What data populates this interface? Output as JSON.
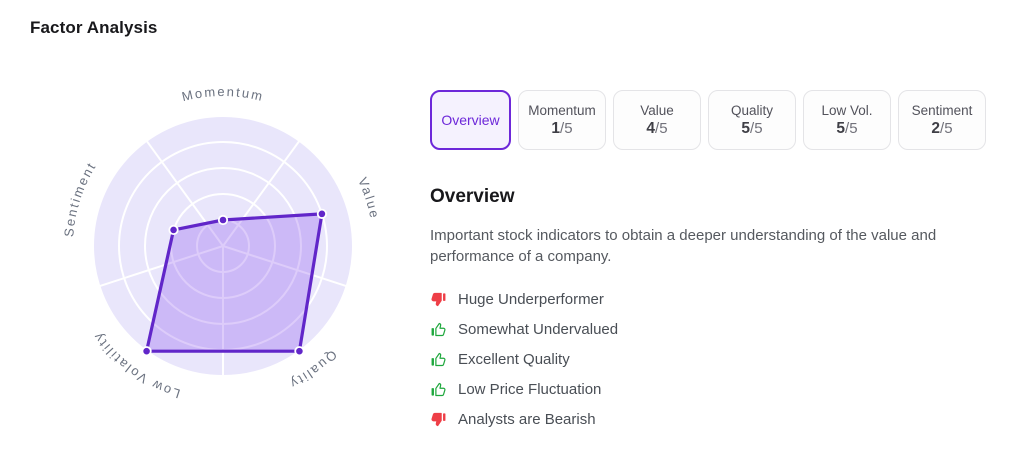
{
  "page": {
    "title": "Factor Analysis"
  },
  "tabs": [
    {
      "label": "Overview",
      "active": true
    },
    {
      "label": "Momentum",
      "score": "1",
      "total": "/5"
    },
    {
      "label": "Value",
      "score": "4",
      "total": "/5"
    },
    {
      "label": "Quality",
      "score": "5",
      "total": "/5"
    },
    {
      "label": "Low Vol.",
      "score": "5",
      "total": "/5"
    },
    {
      "label": "Sentiment",
      "score": "2",
      "total": "/5"
    }
  ],
  "overview": {
    "heading": "Overview",
    "description": "Important stock indicators to obtain a deeper understanding of the value and performance of a company.",
    "insights": [
      {
        "sentiment": "negative",
        "icon": "thumbs-down",
        "text": "Huge Underperformer"
      },
      {
        "sentiment": "positive",
        "icon": "thumbs-up",
        "text": "Somewhat Undervalued"
      },
      {
        "sentiment": "positive",
        "icon": "thumbs-up",
        "text": "Excellent Quality"
      },
      {
        "sentiment": "positive",
        "icon": "thumbs-up",
        "text": "Low Price Fluctuation"
      },
      {
        "sentiment": "negative",
        "icon": "thumbs-down",
        "text": "Analysts are Bearish"
      }
    ],
    "positive_color": "#1fa83d",
    "negative_color": "#ee3f47"
  },
  "chart_data": {
    "type": "radar",
    "categories": [
      "Momentum",
      "Value",
      "Quality",
      "Low Volatility",
      "Sentiment"
    ],
    "values": [
      1,
      4,
      5,
      5,
      2
    ],
    "max": 5,
    "rings": 5,
    "legend": "none",
    "colors": {
      "stroke": "#6126c9",
      "fill": "rgba(124,58,237,0.26)",
      "disc": "#e9e6fb",
      "grid": "#ffffff",
      "label": "#6b7280"
    }
  }
}
